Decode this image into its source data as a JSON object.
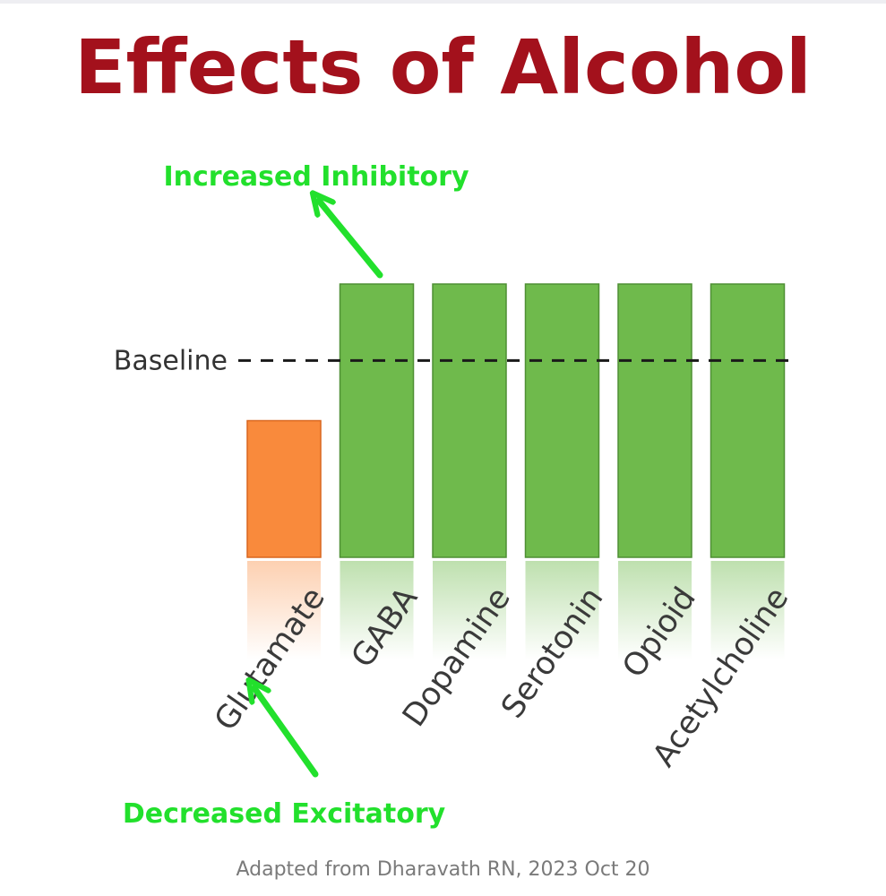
{
  "chart_data": {
    "type": "bar",
    "title": "Effects of Alcohol",
    "categories": [
      "Glutamate",
      "GABA",
      "Dopamine",
      "Serotonin",
      "Opioid",
      "Acetylcholine"
    ],
    "values": [
      0.5,
      1.0,
      1.0,
      1.0,
      1.0,
      1.0
    ],
    "colors": [
      "#f98a3c",
      "#6fba4c",
      "#6fba4c",
      "#6fba4c",
      "#6fba4c",
      "#6fba4c"
    ],
    "baseline": {
      "label": "Baseline",
      "value": 0.72
    },
    "annotations": [
      {
        "text": "Increased Inhibitory",
        "target": "GABA",
        "color": "#22e02c"
      },
      {
        "text": "Decreased Excitatory",
        "target": "Glutamate",
        "color": "#22e02c"
      }
    ],
    "legend": "none",
    "grid": false
  },
  "caption": "Adapted from Dharavath RN, 2023 Oct 20"
}
